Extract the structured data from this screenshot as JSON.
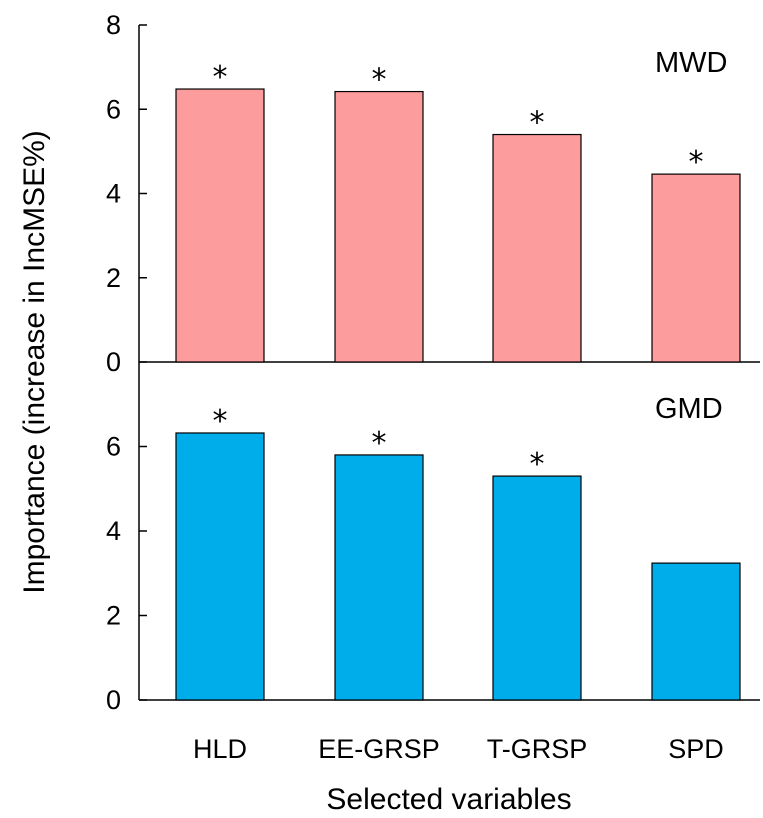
{
  "chart_data": {
    "type": "bar",
    "ylabel": "Importance (increase in IncMSE%)",
    "xlabel": "Selected variables",
    "categories": [
      "HLD",
      "EE-GRSP",
      "T-GRSP",
      "SPD"
    ],
    "panels": [
      {
        "name": "MWD",
        "label": "MWD",
        "values": [
          6.48,
          6.42,
          5.4,
          4.46
        ],
        "significant": [
          true,
          true,
          true,
          true
        ],
        "color": "#fc9c9c",
        "ylim": [
          0,
          8
        ],
        "ticks": [
          0,
          2,
          4,
          6,
          8
        ]
      },
      {
        "name": "GMD",
        "label": "GMD",
        "values": [
          6.32,
          5.8,
          5.3,
          3.24
        ],
        "significant": [
          true,
          true,
          true,
          false
        ],
        "color": "#00adeb",
        "ylim": [
          0,
          8
        ],
        "ticks": [
          0,
          2,
          4,
          6
        ]
      }
    ],
    "significance_marker": "*",
    "grid": false,
    "legend": "none"
  }
}
